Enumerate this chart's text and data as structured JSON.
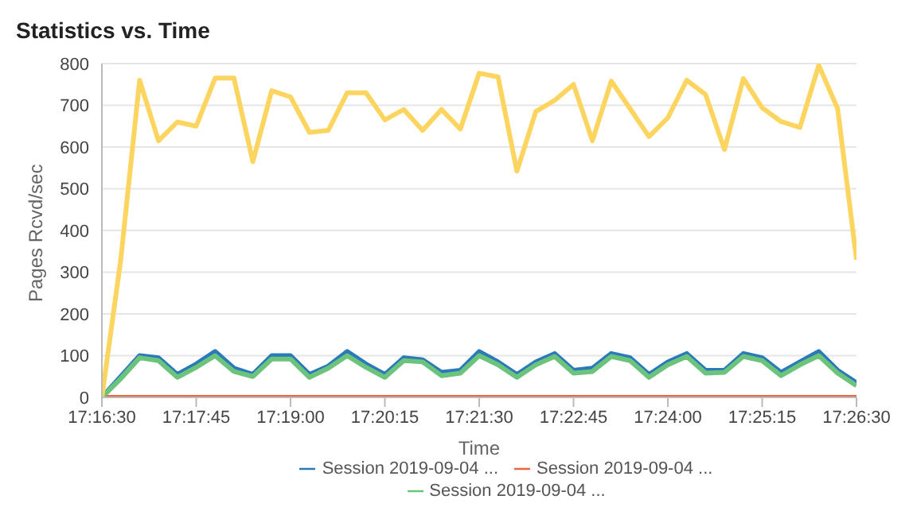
{
  "chart_data": {
    "type": "line",
    "title": "Statistics vs. Time",
    "xlabel": "Time",
    "ylabel": "Pages Rcvd/sec",
    "x": [
      17.275,
      17.279167,
      17.283333,
      17.2875,
      17.291667,
      17.295833,
      17.3,
      17.304167,
      17.308333,
      17.3125,
      17.316667,
      17.320833,
      17.325,
      17.329167,
      17.333333,
      17.3375,
      17.341667,
      17.345833,
      17.35,
      17.354167,
      17.358333,
      17.3625,
      17.366667,
      17.370833,
      17.375,
      17.379167,
      17.383333,
      17.3875,
      17.391667,
      17.395833,
      17.4,
      17.404167,
      17.408333,
      17.4125,
      17.416667,
      17.420833,
      17.425,
      17.429167,
      17.433333,
      17.4375,
      17.441667
    ],
    "series": [
      {
        "name": "Session 2019-09-04 ...",
        "color": "#2a7ab9",
        "values": [
          0,
          50,
          100,
          95,
          55,
          80,
          110,
          70,
          55,
          100,
          100,
          55,
          75,
          110,
          80,
          55,
          95,
          90,
          60,
          65,
          110,
          85,
          55,
          85,
          105,
          65,
          70,
          105,
          95,
          55,
          85,
          105,
          65,
          65,
          105,
          95,
          60,
          85,
          110,
          65,
          35
        ]
      },
      {
        "name": "Session 2019-09-04 ...",
        "color": "#f0643c",
        "values": [
          0,
          0,
          0,
          0,
          0,
          0,
          0,
          0,
          0,
          0,
          0,
          0,
          0,
          0,
          0,
          0,
          0,
          0,
          0,
          0,
          0,
          0,
          0,
          0,
          0,
          0,
          0,
          0,
          0,
          0,
          0,
          0,
          0,
          0,
          0,
          0,
          0,
          0,
          0,
          0,
          0
        ]
      },
      {
        "name": "Session 2019-09-04 ...",
        "color": "#6cc47c",
        "values": [
          0,
          45,
          95,
          88,
          48,
          72,
          100,
          62,
          50,
          92,
          92,
          48,
          70,
          100,
          72,
          48,
          88,
          85,
          52,
          58,
          100,
          78,
          48,
          78,
          98,
          58,
          62,
          98,
          88,
          48,
          78,
          98,
          58,
          60,
          98,
          88,
          52,
          78,
          100,
          58,
          28
        ]
      },
      {
        "color": "#fcd561",
        "values": [
          0,
          330,
          760,
          615,
          660,
          650,
          765,
          765,
          565,
          735,
          720,
          635,
          640,
          730,
          730,
          665,
          690,
          640,
          690,
          643,
          777,
          768,
          542,
          685,
          712,
          750,
          615,
          758,
          692,
          625,
          670,
          760,
          726,
          594,
          764,
          694,
          661,
          647,
          796,
          692,
          330
        ]
      }
    ],
    "xlim": [
      17.275,
      17.441667
    ],
    "xticks": [
      {
        "value": 17.275,
        "label": "17:16:30"
      },
      {
        "value": 17.295833,
        "label": "17:17:45"
      },
      {
        "value": 17.316667,
        "label": "17:19:00"
      },
      {
        "value": 17.3375,
        "label": "17:20:15"
      },
      {
        "value": 17.358333,
        "label": "17:21:30"
      },
      {
        "value": 17.379167,
        "label": "17:22:45"
      },
      {
        "value": 17.4,
        "label": "17:24:00"
      },
      {
        "value": 17.420833,
        "label": "17:25:15"
      },
      {
        "value": 17.441667,
        "label": "17:26:30"
      }
    ],
    "ylim": [
      0,
      800
    ],
    "yticks": [
      0,
      100,
      200,
      300,
      400,
      500,
      600,
      700,
      800
    ],
    "grid": "y",
    "legend": "bottom",
    "marker": "none",
    "line_style": "solid"
  }
}
